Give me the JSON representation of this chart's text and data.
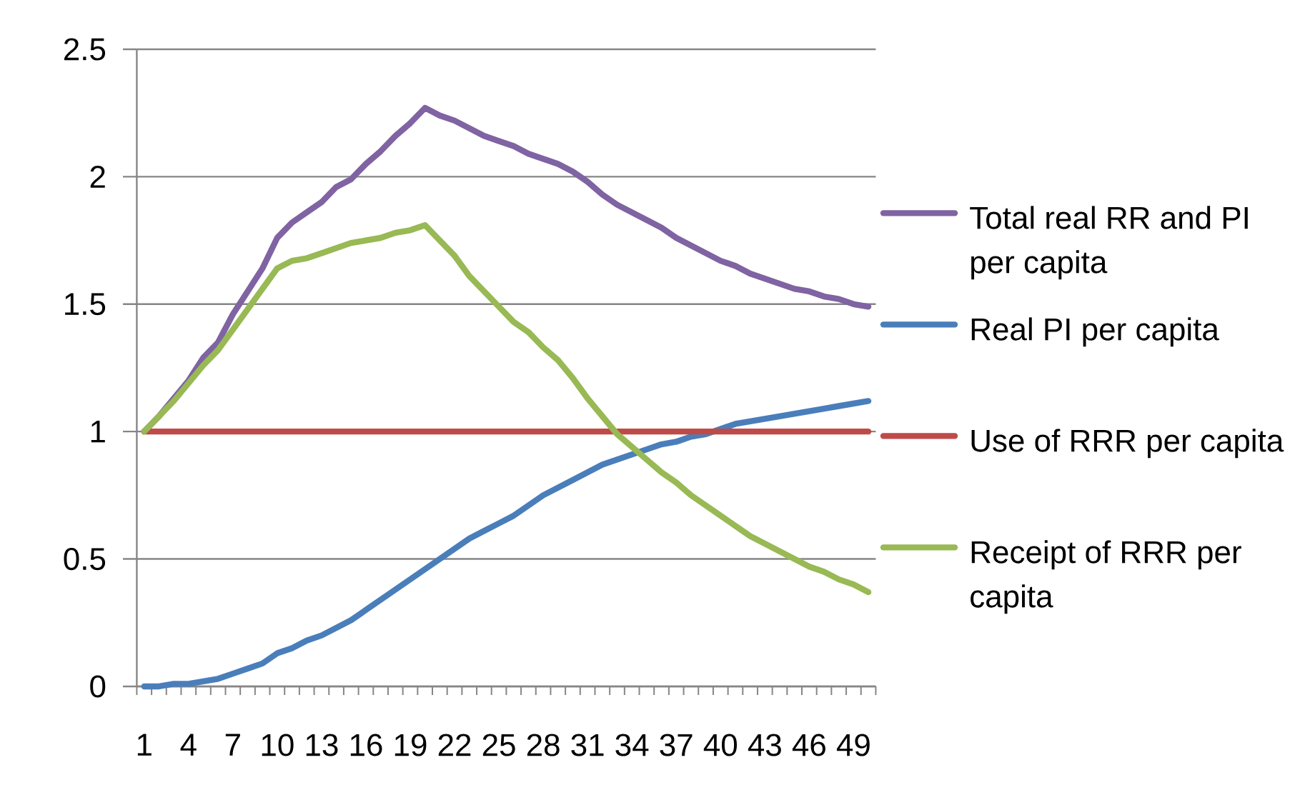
{
  "chart_data": {
    "type": "line",
    "categories": [
      "1",
      null,
      null,
      "4",
      null,
      null,
      "7",
      null,
      null,
      "10",
      null,
      null,
      "13",
      null,
      null,
      "16",
      null,
      null,
      "19",
      null,
      null,
      "22",
      null,
      null,
      "25",
      null,
      null,
      "28",
      null,
      null,
      "31",
      null,
      null,
      "34",
      null,
      null,
      "37",
      null,
      null,
      "40",
      null,
      null,
      "43",
      null,
      null,
      "46",
      null,
      null,
      "49",
      null
    ],
    "series": [
      {
        "name": "Total real RR and PI per capita",
        "color": "#7f63a2",
        "values": [
          1.0,
          1.06,
          1.13,
          1.2,
          1.29,
          1.35,
          1.46,
          1.55,
          1.64,
          1.76,
          1.82,
          1.86,
          1.9,
          1.96,
          1.99,
          2.05,
          2.1,
          2.16,
          2.21,
          2.27,
          2.24,
          2.22,
          2.19,
          2.16,
          2.14,
          2.12,
          2.09,
          2.07,
          2.05,
          2.02,
          1.98,
          1.93,
          1.89,
          1.86,
          1.83,
          1.8,
          1.76,
          1.73,
          1.7,
          1.67,
          1.65,
          1.62,
          1.6,
          1.58,
          1.56,
          1.55,
          1.53,
          1.52,
          1.5,
          1.49
        ]
      },
      {
        "name": "Real PI per capita",
        "color": "#4a7ebb",
        "values": [
          0.0,
          0.0,
          0.01,
          0.01,
          0.02,
          0.03,
          0.05,
          0.07,
          0.09,
          0.13,
          0.15,
          0.18,
          0.2,
          0.23,
          0.26,
          0.3,
          0.34,
          0.38,
          0.42,
          0.46,
          0.5,
          0.54,
          0.58,
          0.61,
          0.64,
          0.67,
          0.71,
          0.75,
          0.78,
          0.81,
          0.84,
          0.87,
          0.89,
          0.91,
          0.93,
          0.95,
          0.96,
          0.98,
          0.99,
          1.01,
          1.03,
          1.04,
          1.05,
          1.06,
          1.07,
          1.08,
          1.09,
          1.1,
          1.11,
          1.12
        ]
      },
      {
        "name": "Use of RRR per capita",
        "color": "#be4b48",
        "values": [
          1.0,
          1.0,
          1.0,
          1.0,
          1.0,
          1.0,
          1.0,
          1.0,
          1.0,
          1.0,
          1.0,
          1.0,
          1.0,
          1.0,
          1.0,
          1.0,
          1.0,
          1.0,
          1.0,
          1.0,
          1.0,
          1.0,
          1.0,
          1.0,
          1.0,
          1.0,
          1.0,
          1.0,
          1.0,
          1.0,
          1.0,
          1.0,
          1.0,
          1.0,
          1.0,
          1.0,
          1.0,
          1.0,
          1.0,
          1.0,
          1.0,
          1.0,
          1.0,
          1.0,
          1.0,
          1.0,
          1.0,
          1.0,
          1.0,
          1.0
        ]
      },
      {
        "name": "Receipt of RRR per capita",
        "color": "#98b954",
        "values": [
          1.0,
          1.06,
          1.12,
          1.19,
          1.26,
          1.32,
          1.4,
          1.48,
          1.56,
          1.64,
          1.67,
          1.68,
          1.7,
          1.72,
          1.74,
          1.75,
          1.76,
          1.78,
          1.79,
          1.81,
          1.75,
          1.69,
          1.61,
          1.55,
          1.49,
          1.43,
          1.39,
          1.33,
          1.28,
          1.21,
          1.13,
          1.06,
          0.99,
          0.94,
          0.89,
          0.84,
          0.8,
          0.75,
          0.71,
          0.67,
          0.63,
          0.59,
          0.56,
          0.53,
          0.5,
          0.47,
          0.45,
          0.42,
          0.4,
          0.37
        ]
      }
    ],
    "ylim": [
      0,
      2.5
    ],
    "yticks": [
      0,
      0.5,
      1,
      1.5,
      2,
      2.5
    ],
    "grid": "y",
    "legend": "right"
  }
}
